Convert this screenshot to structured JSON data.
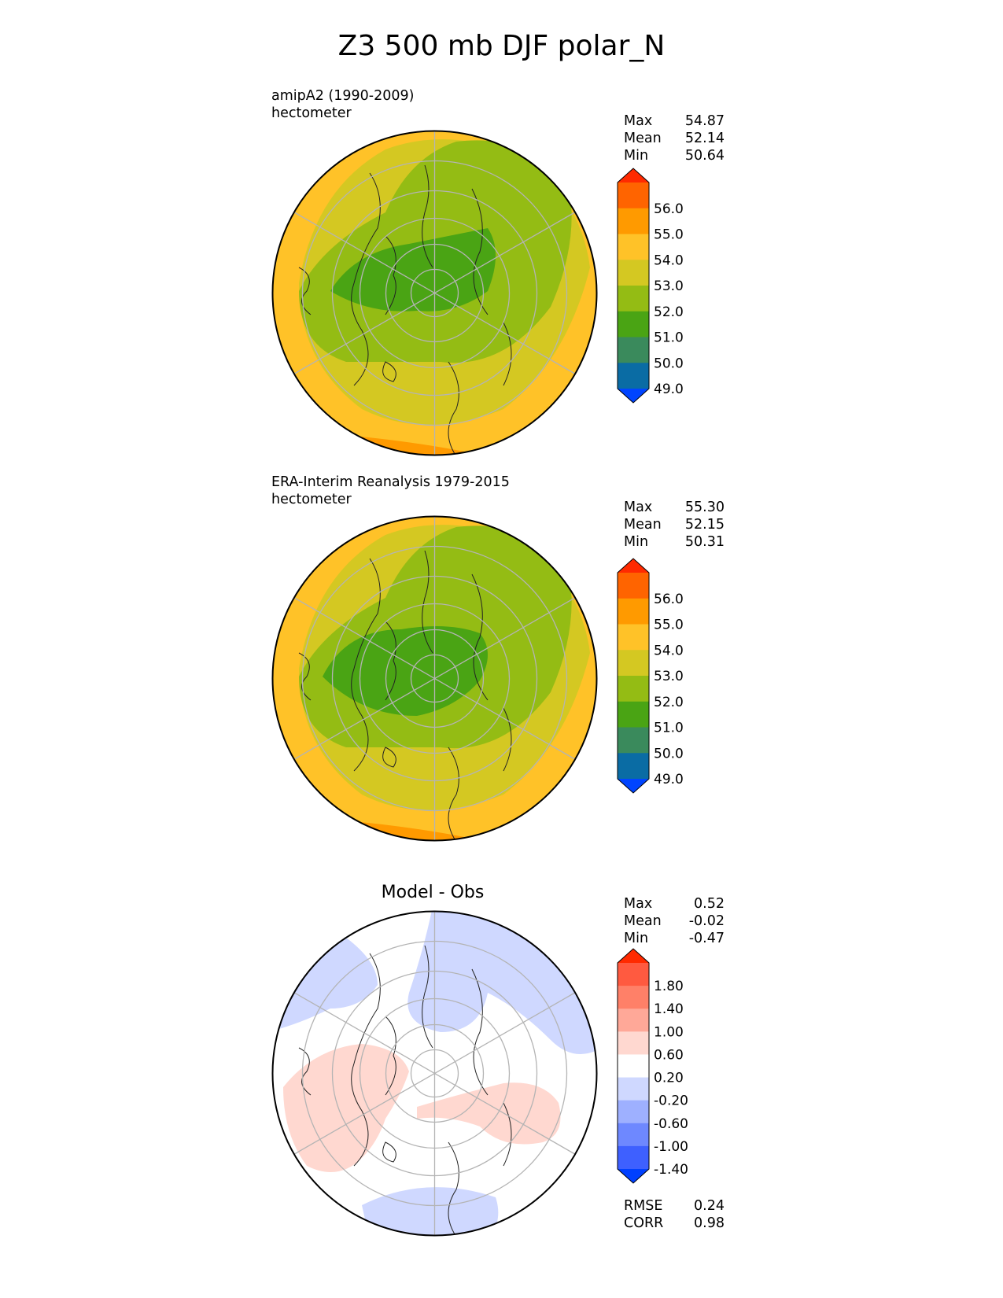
{
  "figure": {
    "title": "Z3 500 mb DJF polar_N"
  },
  "panels": [
    {
      "label_line1": "amipA2 (1990-2009)",
      "label_line2": "hectometer",
      "center_title": "",
      "stats": [
        {
          "name": "Max",
          "value": "54.87"
        },
        {
          "name": "Mean",
          "value": "52.14"
        },
        {
          "name": "Min",
          "value": "50.64"
        }
      ],
      "extra_stats": []
    },
    {
      "label_line1": "ERA-Interim Reanalysis 1979-2015",
      "label_line2": "hectometer",
      "center_title": "",
      "stats": [
        {
          "name": "Max",
          "value": "55.30"
        },
        {
          "name": "Mean",
          "value": "52.15"
        },
        {
          "name": "Min",
          "value": "50.31"
        }
      ],
      "extra_stats": []
    },
    {
      "label_line1": "",
      "label_line2": "",
      "center_title": "Model - Obs",
      "stats": [
        {
          "name": "Max",
          "value": "0.52"
        },
        {
          "name": "Mean",
          "value": "-0.02"
        },
        {
          "name": "Min",
          "value": "-0.47"
        }
      ],
      "extra_stats": [
        {
          "name": "RMSE",
          "value": "0.24"
        },
        {
          "name": "CORR",
          "value": "0.98"
        }
      ]
    }
  ],
  "chart_data": [
    {
      "type": "heatmap",
      "projection": "north polar stereographic",
      "title": "amipA2 (1990-2009)",
      "units": "hectometer",
      "colorbar": {
        "levels": [
          "56.0",
          "55.0",
          "54.0",
          "53.0",
          "52.0",
          "51.0",
          "50.0",
          "49.0",
          "48.0"
        ],
        "colors": [
          "#ff2a00",
          "#ff6400",
          "#ff9a00",
          "#ffc228",
          "#d4c822",
          "#94bc14",
          "#4aa414",
          "#3a8a5c",
          "#0a6ca4",
          "#0044ff"
        ],
        "extend": "both"
      },
      "field_bands_pole_to_edge": [
        {
          "range": "50.0-51.0",
          "color": "#4aa414"
        },
        {
          "range": "51.0-52.0",
          "color": "#94bc14"
        },
        {
          "range": "52.0-53.0",
          "color": "#d4c822"
        },
        {
          "range": "53.0-54.0",
          "color": "#ffc228"
        },
        {
          "range": "54.0-55.0",
          "color": "#ff9a00"
        }
      ],
      "max": 54.87,
      "mean": 52.14,
      "min": 50.64
    },
    {
      "type": "heatmap",
      "projection": "north polar stereographic",
      "title": "ERA-Interim Reanalysis 1979-2015",
      "units": "hectometer",
      "colorbar": {
        "levels": [
          "56.0",
          "55.0",
          "54.0",
          "53.0",
          "52.0",
          "51.0",
          "50.0",
          "49.0",
          "48.0"
        ],
        "colors": [
          "#ff2a00",
          "#ff6400",
          "#ff9a00",
          "#ffc228",
          "#d4c822",
          "#94bc14",
          "#4aa414",
          "#3a8a5c",
          "#0a6ca4",
          "#0044ff"
        ],
        "extend": "both"
      },
      "field_bands_pole_to_edge": [
        {
          "range": "50.0-51.0",
          "color": "#4aa414"
        },
        {
          "range": "51.0-52.0",
          "color": "#94bc14"
        },
        {
          "range": "52.0-53.0",
          "color": "#d4c822"
        },
        {
          "range": "53.0-54.0",
          "color": "#ffc228"
        },
        {
          "range": "54.0-55.0",
          "color": "#ff9a00"
        }
      ],
      "max": 55.3,
      "mean": 52.15,
      "min": 50.31
    },
    {
      "type": "heatmap",
      "projection": "north polar stereographic",
      "title": "Model - Obs",
      "colorbar": {
        "levels": [
          "1.80",
          "1.40",
          "1.00",
          "0.60",
          "0.20",
          "-0.20",
          "-0.60",
          "-1.00",
          "-1.40",
          "-1.80"
        ],
        "colors": [
          "#ff2a00",
          "#ff5a40",
          "#ff8068",
          "#ffa898",
          "#ffd8d0",
          "#ffffff",
          "#cfd8ff",
          "#9eb0ff",
          "#6e88ff",
          "#3e60ff",
          "#0040ff"
        ],
        "extend": "both"
      },
      "anomaly_regions": [
        {
          "range": "0.20-0.60",
          "color": "#ffd8d0",
          "sign": "positive"
        },
        {
          "range": "-0.60--0.20",
          "color": "#cfd8ff",
          "sign": "negative"
        }
      ],
      "max": 0.52,
      "mean": -0.02,
      "min": -0.47,
      "rmse": 0.24,
      "corr": 0.98
    }
  ]
}
